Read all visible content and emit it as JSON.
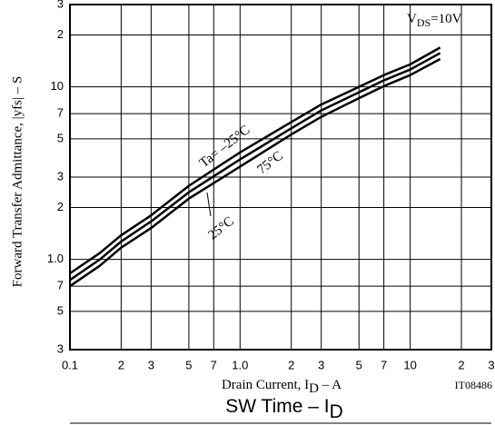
{
  "chart_data": {
    "type": "line",
    "title_fragment": "SW Time",
    "title_fragment_sub": "D",
    "title_fragment_mid": "  –  I",
    "x_label": "Drain Current, I",
    "x_label_sub": "D",
    "x_label_end": " – A",
    "y_label": "Forward Transfer Admittance, |yfs|  –  S",
    "condition": "V",
    "condition_sub": "DS",
    "condition_end": "=10V",
    "code": "IT08486",
    "log_x": true,
    "log_y": true,
    "grid": true,
    "xlim": [
      0.1,
      30
    ],
    "ylim": [
      0.3,
      30
    ],
    "xticks": [
      {
        "value": 0.1,
        "label": "0.1"
      },
      {
        "value": 0.2,
        "label": "2"
      },
      {
        "value": 0.3,
        "label": "3"
      },
      {
        "value": 0.5,
        "label": "5"
      },
      {
        "value": 0.7,
        "label": "7"
      },
      {
        "value": 1,
        "label": "1.0"
      },
      2,
      3,
      5,
      7,
      10,
      {
        "value": 20,
        "label": "2"
      },
      {
        "value": 30,
        "label": "3"
      }
    ],
    "yticks": [
      {
        "value": 0.3,
        "label": "3"
      },
      {
        "value": 0.5,
        "label": "5"
      },
      {
        "value": 0.7,
        "label": "7"
      },
      {
        "value": 1,
        "label": "1.0"
      },
      2,
      3,
      5,
      7,
      10,
      {
        "value": 20,
        "label": "2"
      },
      {
        "value": 30,
        "label": "3"
      }
    ],
    "x": [
      0.1,
      0.15,
      0.2,
      0.3,
      0.5,
      1,
      2,
      3,
      5,
      7,
      10,
      15
    ],
    "series": [
      {
        "name": "Ta= –25°C",
        "color": "#000000",
        "values": [
          0.83,
          1.09,
          1.38,
          1.8,
          2.67,
          4.17,
          6.25,
          7.9,
          10.0,
          11.7,
          13.5,
          16.9
        ]
      },
      {
        "name": "75°C",
        "color": "#000000",
        "values": [
          0.76,
          1.0,
          1.27,
          1.66,
          2.45,
          3.8,
          5.75,
          7.3,
          9.3,
          10.9,
          12.6,
          15.7
        ]
      },
      {
        "name": "25°C",
        "color": "#000000",
        "values": [
          0.7,
          0.92,
          1.17,
          1.52,
          2.25,
          3.45,
          5.3,
          6.7,
          8.6,
          10.1,
          11.7,
          14.5
        ]
      }
    ]
  }
}
